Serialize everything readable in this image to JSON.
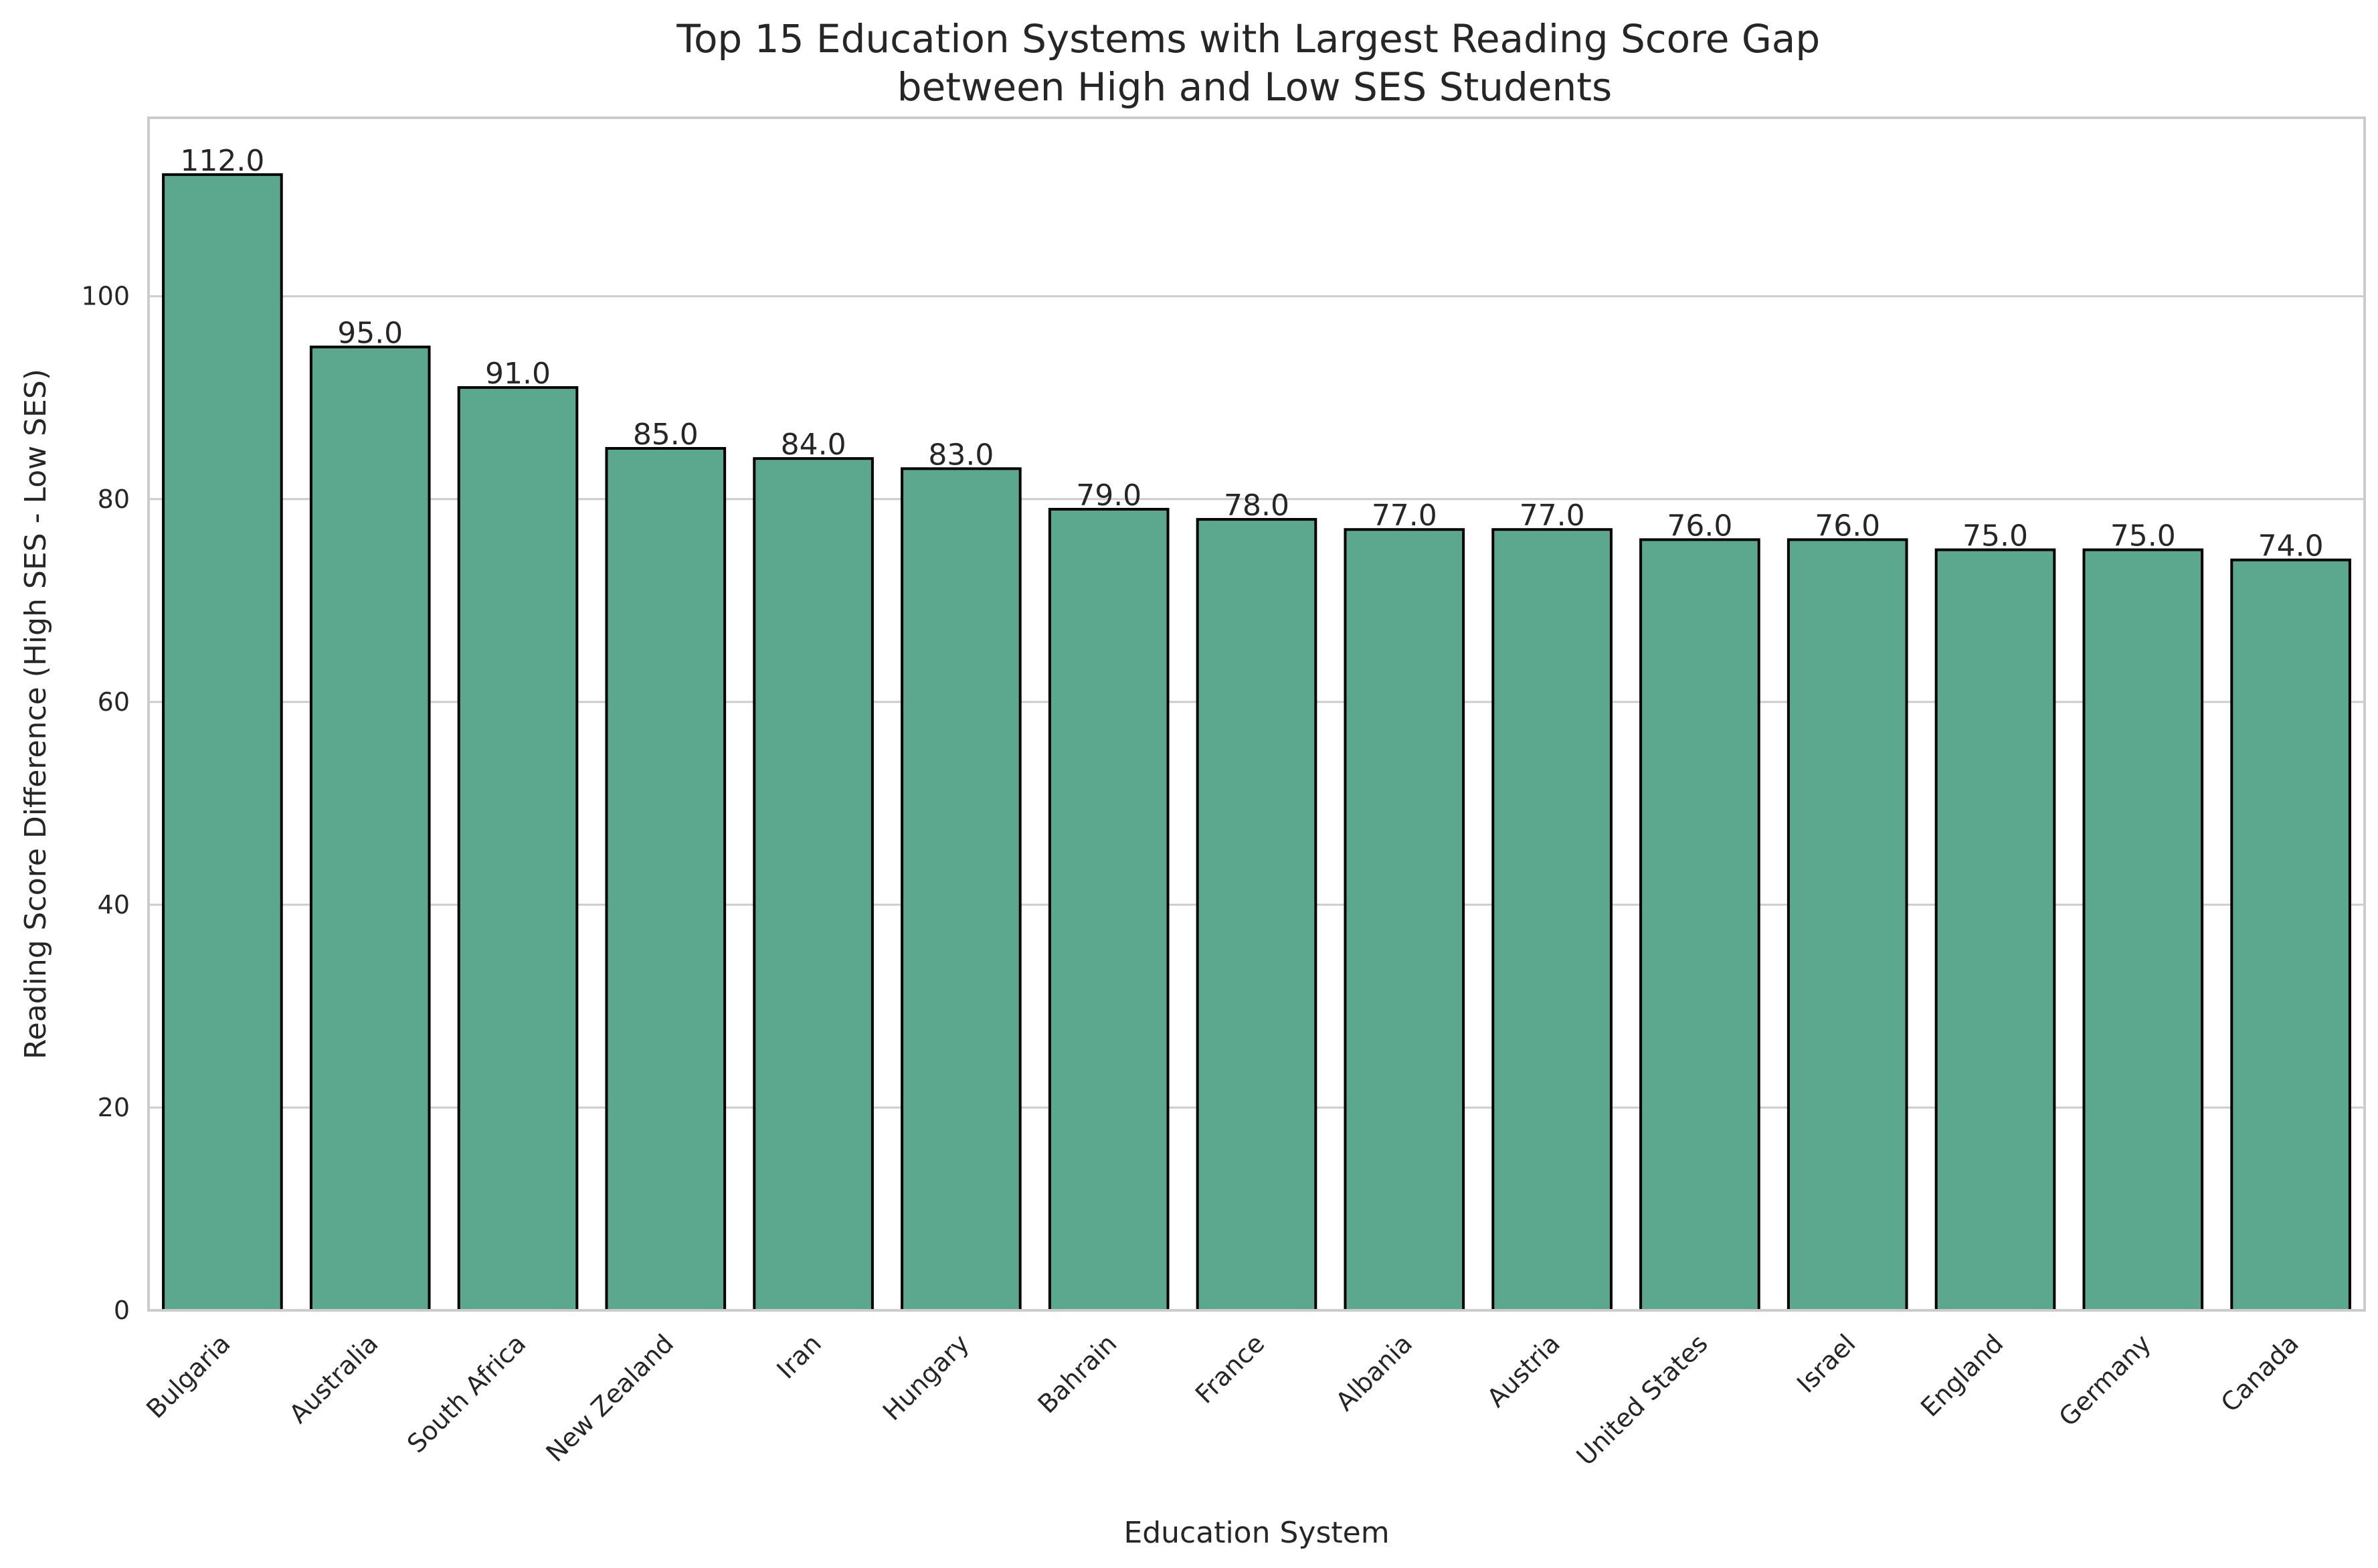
{
  "chart_data": {
    "type": "bar",
    "title": "Top 15 Education Systems with Largest Reading Score Gap\nbetween High and Low SES Students",
    "xlabel": "Education System",
    "ylabel": "Reading Score Difference (High SES - Low SES)",
    "categories": [
      "Bulgaria",
      "Australia",
      "South Africa",
      "New Zealand",
      "Iran",
      "Hungary",
      "Bahrain",
      "France",
      "Albania",
      "Austria",
      "United States",
      "Israel",
      "England",
      "Germany",
      "Canada"
    ],
    "values": [
      112.0,
      95.0,
      91.0,
      85.0,
      84.0,
      83.0,
      79.0,
      78.0,
      77.0,
      77.0,
      76.0,
      76.0,
      75.0,
      75.0,
      74.0
    ],
    "value_labels": [
      "112.0",
      "95.0",
      "91.0",
      "85.0",
      "84.0",
      "83.0",
      "79.0",
      "78.0",
      "77.0",
      "77.0",
      "76.0",
      "76.0",
      "75.0",
      "75.0",
      "74.0"
    ],
    "ylim": [
      0,
      117.6
    ],
    "yticks": [
      0,
      20,
      40,
      60,
      80,
      100
    ],
    "grid": "horizontal",
    "bar_color": "#5ba88f",
    "edge_color": "#000000"
  }
}
